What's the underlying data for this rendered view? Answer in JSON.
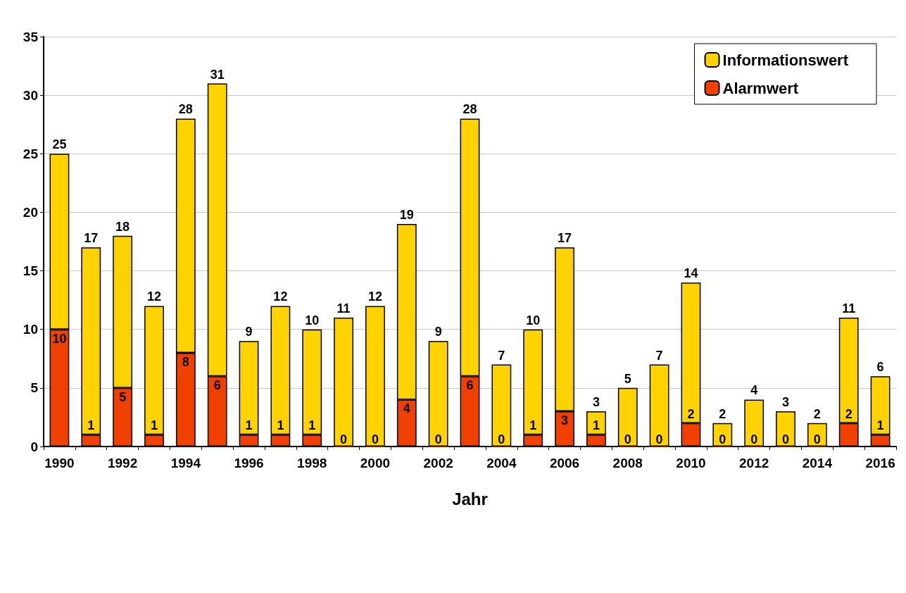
{
  "chart_data": {
    "type": "bar",
    "xlabel": "Jahr",
    "stacked": true,
    "categories": [
      "1990",
      null,
      "1992",
      null,
      "1994",
      null,
      "1996",
      null,
      "1998",
      null,
      "2000",
      null,
      "2002",
      null,
      "2004",
      null,
      "2006",
      null,
      "2008",
      null,
      "2010",
      null,
      "2012",
      null,
      "2014",
      null,
      "2016"
    ],
    "series": [
      {
        "name": "Alarmwert",
        "color": "#f04000",
        "values": [
          10,
          1,
          5,
          1,
          8,
          6,
          1,
          1,
          1,
          0,
          0,
          4,
          0,
          6,
          0,
          1,
          3,
          1,
          0,
          0,
          2,
          0,
          0,
          0,
          0,
          2,
          1
        ],
        "value_labels": [
          "10",
          "1",
          "5",
          "1",
          "8",
          "6",
          "1",
          "1",
          "1",
          "0",
          "0",
          "4",
          "0",
          "6",
          "0",
          "1",
          "3",
          "1",
          "0",
          "0",
          "2",
          "0",
          "0",
          "0",
          "0",
          "2",
          "1"
        ]
      },
      {
        "name": "Informationswert",
        "color": "#ffd200",
        "values": [
          15,
          16,
          13,
          11,
          20,
          25,
          8,
          11,
          9,
          11,
          12,
          15,
          9,
          22,
          7,
          9,
          14,
          2,
          5,
          7,
          12,
          2,
          4,
          3,
          2,
          9,
          5
        ]
      }
    ],
    "totals": [
      "25",
      "17",
      "18",
      "12",
      "28",
      "31",
      "9",
      "12",
      "10",
      "11",
      "12",
      "19",
      "9",
      "28",
      "7",
      "10",
      "17",
      "3",
      "5",
      "7",
      "14",
      "2",
      "4",
      "3",
      "2",
      "11",
      "6"
    ],
    "ylim": [
      0,
      35
    ],
    "yticks": [
      0,
      5,
      10,
      15,
      20,
      25,
      30,
      35
    ],
    "grid": "y",
    "legend": "top right"
  }
}
